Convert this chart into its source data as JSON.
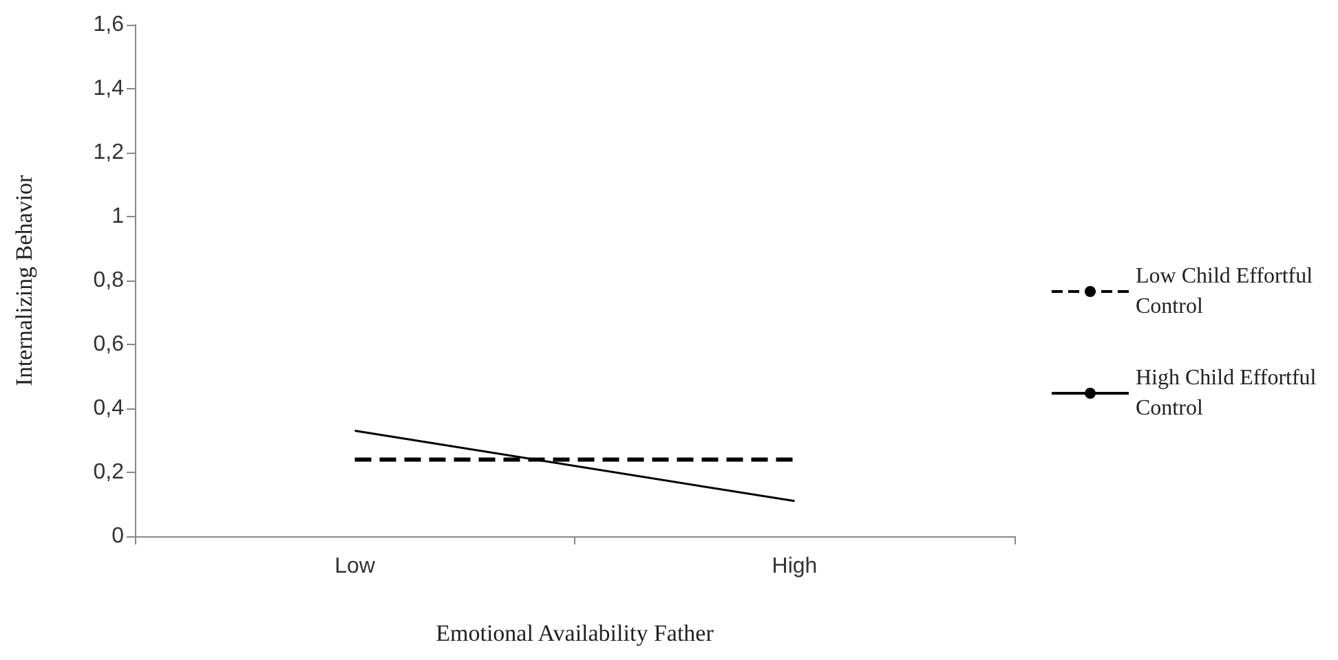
{
  "chart_data": {
    "type": "line",
    "xlabel": "Emotional Availability Father",
    "ylabel": "Internalizing Behavior",
    "categories": [
      "Low",
      "High"
    ],
    "series": [
      {
        "name": "Low Child Effortful Control",
        "color": "#000000",
        "line_style": "dashed",
        "values": [
          0.24,
          0.24
        ]
      },
      {
        "name": "High Child Effortful Control",
        "color": "#000000",
        "line_style": "solid",
        "values": [
          0.33,
          0.11
        ]
      }
    ],
    "ylim": [
      0,
      1.6
    ],
    "yticks": [
      {
        "value": 0,
        "label": "0"
      },
      {
        "value": 0.2,
        "label": "0,2"
      },
      {
        "value": 0.4,
        "label": "0,4"
      },
      {
        "value": 0.6,
        "label": "0,6"
      },
      {
        "value": 0.8,
        "label": "0,8"
      },
      {
        "value": 1,
        "label": "1"
      },
      {
        "value": 1.2,
        "label": "1,2"
      },
      {
        "value": 1.4,
        "label": "1,4"
      },
      {
        "value": 1.6,
        "label": "1,6"
      }
    ],
    "grid": false,
    "legend": "right",
    "marker": "none"
  }
}
